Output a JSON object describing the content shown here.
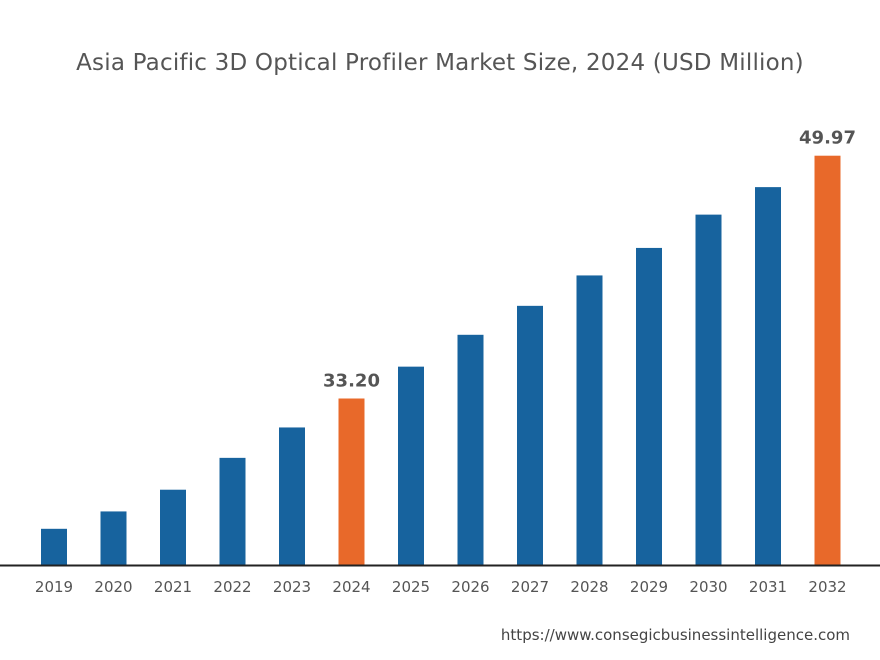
{
  "chart_data": {
    "type": "bar",
    "title": "Asia Pacific 3D Optical Profiler Market Size, 2024 (USD Million)",
    "xlabel": "",
    "ylabel": "",
    "categories": [
      "2019",
      "2020",
      "2021",
      "2022",
      "2023",
      "2024",
      "2025",
      "2026",
      "2027",
      "2028",
      "2029",
      "2030",
      "2031",
      "2032"
    ],
    "values": [
      24.2,
      25.4,
      26.9,
      29.1,
      31.2,
      33.2,
      35.4,
      37.6,
      39.6,
      41.7,
      43.6,
      45.9,
      47.8,
      49.97
    ],
    "data_labels": {
      "2024": "33.20",
      "2032": "49.97"
    },
    "highlight_categories": [
      "2024",
      "2032"
    ],
    "ylim": [
      21.7,
      51.4
    ],
    "grid": false,
    "legend": "none",
    "colors": {
      "bar": "#17639e",
      "highlight": "#e8692a",
      "axis": "#222222",
      "label_text": "#555555"
    }
  },
  "source": "https://www.consegicbusinessintelligence.com"
}
